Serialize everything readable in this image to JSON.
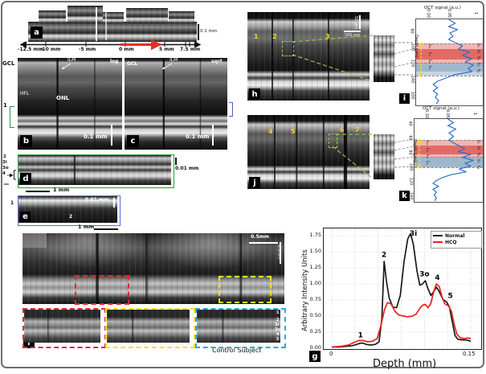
{
  "colors": {
    "red_dashed": "#e8262d",
    "yellow_dashed": "#f7e017",
    "blue_dashed": "#2ba8e0",
    "green_border": "#1fa03c",
    "panel_e_border": "#5b6bd5",
    "annotation_green": "#8fc63f",
    "curve_blue": "#2f6fc4",
    "band_light_red": "#f2b5b2",
    "band_red": "#e26a66",
    "band_blue": "#9fb7cc",
    "ruler_arrow_red": "#e03127",
    "oct_number_yellow": "#f5d519",
    "normal_black": "#1a1a1a",
    "hcq_red": "#e8231f"
  },
  "panels": {
    "a": {
      "tag": "a",
      "scale_v": "0.1 mm",
      "ruler_ticks": [
        "-12.5 mm",
        "-10 mm",
        "-5 mm",
        "0 mm",
        "5 mm",
        "7.5 mm"
      ]
    },
    "b": {
      "tag": "b",
      "mode": "log",
      "gcl": "GCL",
      "ilm": "ILM",
      "hfl": "HFL",
      "onl": "ONL",
      "scale": "0.1 mm",
      "bracket_label": "1"
    },
    "c": {
      "tag": "c",
      "mode": "sqrt",
      "gcl": "GCL",
      "ilm": "ILM",
      "scale": "0.1 mm"
    },
    "d": {
      "tag": "d",
      "left_labels": [
        "2",
        "3i",
        "3o",
        "4"
      ],
      "scale_v_tick": "I",
      "scale_v": "0.01 mm",
      "scale_h": "1 mm"
    },
    "e": {
      "tag": "e",
      "left_label": "1",
      "inner_label": "2",
      "scale_v": "0.01 mm",
      "scale_h": "1 mm"
    },
    "f": {
      "tag": "f",
      "scale_h": "0.5mm",
      "scale_v": "0.1mm",
      "caption": "Control Subject",
      "band_labels": [
        "1",
        "2",
        "3i",
        "3o",
        "4",
        "5"
      ]
    },
    "g": {
      "tag": "g"
    },
    "h": {
      "tag": "h",
      "numbers": [
        "1",
        "2",
        "3"
      ],
      "scale_v": "50 µm",
      "scale_h": "500 µm"
    },
    "i": {
      "tag": "i"
    },
    "j": {
      "tag": "j",
      "numbers": [
        "4",
        "5",
        "6",
        "7"
      ]
    },
    "k": {
      "tag": "k"
    }
  },
  "chart_data": [
    {
      "type": "line",
      "panel": "g",
      "title": "",
      "xlabel": "Depth (mm)",
      "ylabel": "Arbitrary Intensity Units",
      "xlim": [
        0,
        0.15
      ],
      "ylim": [
        0,
        1.875
      ],
      "xticks": [
        "0",
        "0.15"
      ],
      "yticks": [
        "0.00",
        "0.25",
        "0.50",
        "0.75",
        "1.00",
        "1.25",
        "1.50",
        "1.75"
      ],
      "grid": "dotted",
      "legend_position": "top-right",
      "series": [
        {
          "name": "Normal",
          "color": "#1a1a1a",
          "points": [
            [
              0,
              0.02
            ],
            [
              0.008,
              0.02
            ],
            [
              0.015,
              0.03
            ],
            [
              0.022,
              0.04
            ],
            [
              0.027,
              0.06
            ],
            [
              0.031,
              0.08
            ],
            [
              0.034,
              0.08
            ],
            [
              0.037,
              0.06
            ],
            [
              0.042,
              0.05
            ],
            [
              0.047,
              0.06
            ],
            [
              0.051,
              0.1
            ],
            [
              0.054,
              0.45
            ],
            [
              0.0565,
              1.35
            ],
            [
              0.059,
              1.05
            ],
            [
              0.062,
              0.78
            ],
            [
              0.066,
              0.64
            ],
            [
              0.07,
              0.63
            ],
            [
              0.074,
              0.82
            ],
            [
              0.078,
              1.35
            ],
            [
              0.082,
              1.7
            ],
            [
              0.085,
              1.78
            ],
            [
              0.088,
              1.62
            ],
            [
              0.092,
              1.2
            ],
            [
              0.095,
              0.98
            ],
            [
              0.098,
              1.0
            ],
            [
              0.101,
              1.05
            ],
            [
              0.104,
              0.92
            ],
            [
              0.107,
              0.82
            ],
            [
              0.11,
              0.88
            ],
            [
              0.113,
              0.95
            ],
            [
              0.116,
              0.88
            ],
            [
              0.12,
              0.76
            ],
            [
              0.124,
              0.72
            ],
            [
              0.127,
              0.64
            ],
            [
              0.13,
              0.42
            ],
            [
              0.133,
              0.2
            ],
            [
              0.136,
              0.14
            ],
            [
              0.14,
              0.13
            ],
            [
              0.145,
              0.13
            ],
            [
              0.15,
              0.11
            ]
          ]
        },
        {
          "name": "HCQ",
          "color": "#e8231f",
          "points": [
            [
              0,
              0.02
            ],
            [
              0.01,
              0.03
            ],
            [
              0.018,
              0.05
            ],
            [
              0.024,
              0.09
            ],
            [
              0.029,
              0.12
            ],
            [
              0.034,
              0.12
            ],
            [
              0.039,
              0.1
            ],
            [
              0.044,
              0.11
            ],
            [
              0.049,
              0.15
            ],
            [
              0.053,
              0.35
            ],
            [
              0.057,
              0.6
            ],
            [
              0.06,
              0.71
            ],
            [
              0.064,
              0.69
            ],
            [
              0.068,
              0.58
            ],
            [
              0.072,
              0.52
            ],
            [
              0.077,
              0.5
            ],
            [
              0.082,
              0.49
            ],
            [
              0.087,
              0.5
            ],
            [
              0.091,
              0.53
            ],
            [
              0.095,
              0.62
            ],
            [
              0.098,
              0.67
            ],
            [
              0.101,
              0.68
            ],
            [
              0.104,
              0.63
            ],
            [
              0.107,
              0.7
            ],
            [
              0.11,
              0.88
            ],
            [
              0.113,
              1.0
            ],
            [
              0.116,
              0.96
            ],
            [
              0.119,
              0.8
            ],
            [
              0.122,
              0.69
            ],
            [
              0.126,
              0.66
            ],
            [
              0.129,
              0.58
            ],
            [
              0.132,
              0.38
            ],
            [
              0.135,
              0.22
            ],
            [
              0.139,
              0.16
            ],
            [
              0.143,
              0.15
            ],
            [
              0.147,
              0.16
            ],
            [
              0.15,
              0.15
            ]
          ]
        }
      ],
      "peak_labels": [
        {
          "text": "1",
          "x": 0.031,
          "y": 0.17
        },
        {
          "text": "2",
          "x": 0.0565,
          "y": 1.42
        },
        {
          "text": "3i",
          "x": 0.088,
          "y": 1.82
        },
        {
          "text": "3o",
          "x": 0.1,
          "y": 1.12
        },
        {
          "text": "4",
          "x": 0.114,
          "y": 1.06
        },
        {
          "text": "5",
          "x": 0.128,
          "y": 0.78
        }
      ]
    },
    {
      "type": "line",
      "panel": "i",
      "orientation": "rotated-90cw",
      "title": "OCT signal (a.u.)",
      "axis_left": "Depth (µm)",
      "depth_ticks": [
        "80",
        "100",
        "120",
        "140",
        "160"
      ],
      "signal_ticks": [
        "0.10",
        "0.05",
        "1"
      ],
      "bands": [
        {
          "label": "L₄",
          "depth_range": [
            93,
            117
          ],
          "color": "light-red"
        },
        {
          "label": "L₃",
          "depth_range": [
            100,
            113
          ],
          "color": "red"
        },
        {
          "label": "L₂",
          "depth_range": [
            113,
            117
          ],
          "color": "red"
        },
        {
          "label": "L₁",
          "depth_range": [
            117,
            128
          ],
          "color": "blue-gray"
        }
      ],
      "side_labels": [
        "S₅",
        "S₄",
        "S₃",
        "S₂",
        "S₁"
      ],
      "series": [
        {
          "name": "OCT signal",
          "color": "#2f6fc4",
          "points": [
            [
              63,
              0.5
            ],
            [
              68,
              0.62
            ],
            [
              72,
              0.5
            ],
            [
              76,
              0.66
            ],
            [
              80,
              0.52
            ],
            [
              84,
              0.58
            ],
            [
              88,
              0.5
            ],
            [
              92,
              0.62
            ],
            [
              96,
              0.75
            ],
            [
              100,
              0.68
            ],
            [
              104,
              0.88
            ],
            [
              108,
              0.75
            ],
            [
              112,
              0.92
            ],
            [
              116,
              0.8
            ],
            [
              120,
              0.95
            ],
            [
              124,
              0.85
            ],
            [
              128,
              0.92
            ],
            [
              132,
              0.6
            ],
            [
              136,
              0.45
            ],
            [
              140,
              0.3
            ],
            [
              144,
              0.22
            ],
            [
              148,
              0.3
            ],
            [
              152,
              0.22
            ],
            [
              156,
              0.3
            ],
            [
              160,
              0.26
            ],
            [
              164,
              0.32
            ],
            [
              168,
              0.28
            ]
          ]
        }
      ]
    },
    {
      "type": "line",
      "panel": "k",
      "orientation": "rotated-90cw",
      "title": "OCT signal (a.u.)",
      "axis_left": "Depth (µm)",
      "depth_ticks": [
        "40",
        "60",
        "80",
        "100",
        "120",
        "140"
      ],
      "signal_ticks": [
        "0.10",
        "0.05",
        "1"
      ],
      "bands": [
        {
          "label": "L₄",
          "depth_range": [
            70,
            93
          ],
          "color": "light-red"
        },
        {
          "label": "L₃",
          "depth_range": [
            78,
            90
          ],
          "color": "red"
        },
        {
          "label": "L₂",
          "depth_range": [
            90,
            93
          ],
          "color": "red"
        },
        {
          "label": "L₁",
          "depth_range": [
            93,
            107
          ],
          "color": "blue-gray"
        }
      ],
      "side_labels": [
        "S₅",
        "S₄",
        "S₃",
        "S₂",
        "S₁"
      ],
      "series": [
        {
          "name": "OCT signal",
          "color": "#2f6fc4",
          "points": [
            [
              31,
              0.5
            ],
            [
              36,
              0.6
            ],
            [
              40,
              0.5
            ],
            [
              45,
              0.64
            ],
            [
              50,
              0.52
            ],
            [
              55,
              0.6
            ],
            [
              60,
              0.52
            ],
            [
              64,
              0.6
            ],
            [
              68,
              0.7
            ],
            [
              72,
              0.8
            ],
            [
              76,
              0.68
            ],
            [
              80,
              0.9
            ],
            [
              84,
              0.75
            ],
            [
              88,
              0.95
            ],
            [
              92,
              0.8
            ],
            [
              96,
              0.9
            ],
            [
              100,
              0.7
            ],
            [
              104,
              0.82
            ],
            [
              108,
              0.55
            ],
            [
              112,
              0.4
            ],
            [
              116,
              0.3
            ],
            [
              120,
              0.24
            ],
            [
              124,
              0.34
            ],
            [
              128,
              0.24
            ],
            [
              132,
              0.3
            ],
            [
              136,
              0.26
            ],
            [
              140,
              0.3
            ],
            [
              144,
              0.27
            ]
          ]
        }
      ]
    }
  ]
}
